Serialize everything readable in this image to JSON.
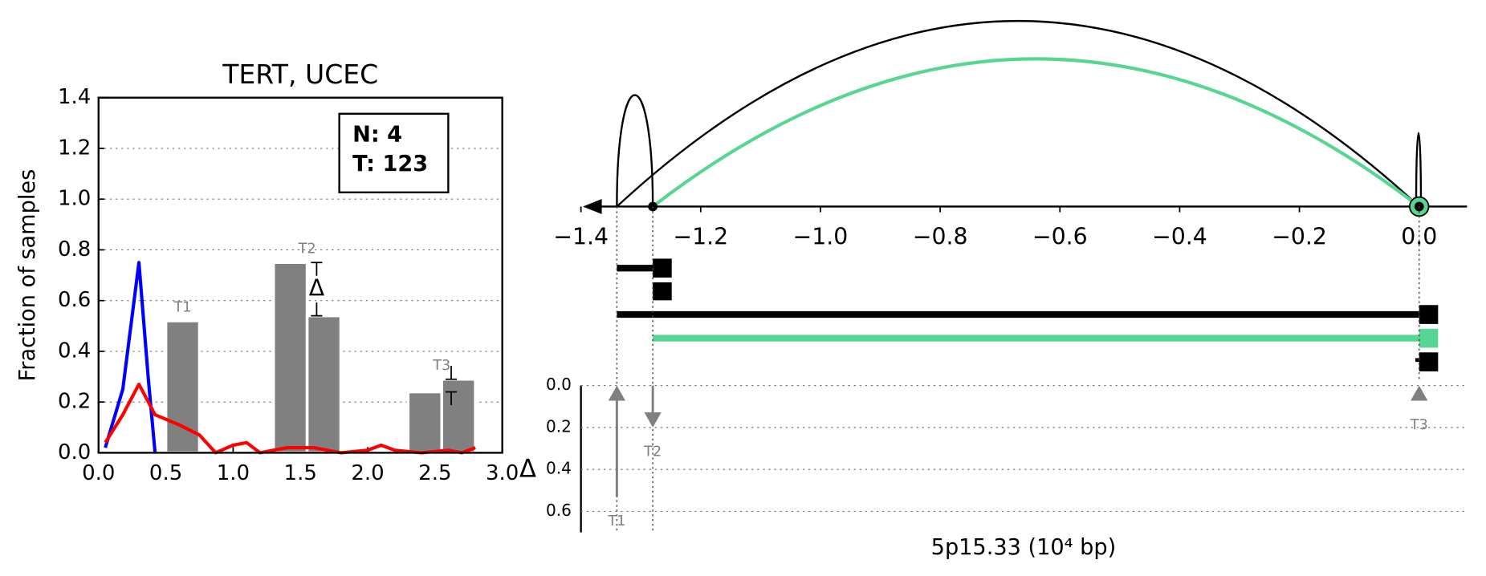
{
  "chart_data": [
    {
      "type": "bar",
      "title": "TERT, UCEC",
      "ylabel": "Fraction of samples",
      "xlim": [
        0,
        3
      ],
      "xticks": [
        {
          "value": 0,
          "label": "0.0"
        },
        {
          "value": 0.5,
          "label": "0.5"
        },
        {
          "value": 1,
          "label": "1.0"
        },
        {
          "value": 1.5,
          "label": "1.5"
        },
        {
          "value": 2,
          "label": "2.0"
        },
        {
          "value": 2.5,
          "label": "2.5"
        },
        {
          "value": 3,
          "label": "3.0"
        }
      ],
      "ylim": [
        0,
        1.4
      ],
      "yticks": [
        {
          "value": 0,
          "label": "0.0"
        },
        {
          "value": 0.2,
          "label": "0.2"
        },
        {
          "value": 0.4,
          "label": "0.4"
        },
        {
          "value": 0.6,
          "label": "0.6"
        },
        {
          "value": 0.8,
          "label": "0.8"
        },
        {
          "value": 1,
          "label": "1.0"
        },
        {
          "value": 1.2,
          "label": "1.2"
        },
        {
          "value": 1.4,
          "label": "1.4"
        }
      ],
      "grid": true,
      "annotation": [
        "N: 4",
        "T: 123"
      ],
      "bars": {
        "left": [
          0.5,
          1.3,
          1.55,
          2.3,
          2.55
        ],
        "right": [
          0.75,
          1.55,
          1.8,
          2.55,
          2.8
        ],
        "values": [
          0.52,
          0.75,
          0.54,
          0.24,
          0.29
        ],
        "color": "#808080"
      },
      "bar_groups": [
        {
          "label": "T1",
          "bars": [
            0
          ]
        },
        {
          "label": "T2",
          "bars": [
            1,
            2
          ]
        },
        {
          "label": "T3",
          "bars": [
            3,
            4
          ]
        }
      ],
      "delta_label": "Δ",
      "x": [
        0.05,
        0.18,
        0.3,
        0.37,
        0.42,
        0.6,
        0.75,
        0.87,
        1.0,
        1.1,
        1.2,
        1.4,
        1.6,
        1.8,
        2.0,
        2.1,
        2.2,
        2.4,
        2.6,
        2.7,
        2.8
      ],
      "series": [
        {
          "color": "#0000ff",
          "values": [
            0.02,
            0.25,
            0.75,
            0.29,
            0,
            null,
            null,
            null,
            null,
            null,
            null,
            null,
            null,
            null,
            null,
            null,
            null,
            null,
            null,
            null,
            null
          ]
        },
        {
          "color": "#ff0000",
          "values": [
            0.04,
            0.15,
            0.27,
            0.2,
            0.15,
            0.11,
            0.07,
            0,
            0.03,
            0.04,
            0,
            0.02,
            0.02,
            0,
            0.01,
            0.03,
            0.01,
            0,
            0.01,
            0,
            0.02
          ]
        }
      ]
    },
    {
      "type": "arc",
      "xlim": [
        -1.4,
        0.08
      ],
      "xticks": [
        {
          "value": -1.4,
          "label": "−1.4"
        },
        {
          "value": -1.2,
          "label": "−1.2"
        },
        {
          "value": -1,
          "label": "−1.0"
        },
        {
          "value": -0.8,
          "label": "−0.8"
        },
        {
          "value": -0.6,
          "label": "−0.6"
        },
        {
          "value": -0.4,
          "label": "−0.4"
        },
        {
          "value": -0.2,
          "label": "−0.2"
        },
        {
          "value": 0,
          "label": "0.0"
        }
      ],
      "arcs": [
        {
          "start": -1.34,
          "end": 0,
          "color": "#000000"
        },
        {
          "start": -1.28,
          "end": 0,
          "color": "#57d693"
        },
        {
          "start": -1.34,
          "end": -1.28,
          "color": "#000000"
        },
        {
          "start": -0.005,
          "end": 0.003,
          "color": "#000000"
        }
      ],
      "nodes": [
        -1.28,
        0
      ],
      "tracks": [
        {
          "start": -1.34,
          "end": -1.28,
          "color": "#000000"
        },
        {
          "start": -1.34,
          "end": 0,
          "color": "#000000"
        },
        {
          "start": -1.28,
          "end": 0,
          "color": "#57d693"
        }
      ]
    },
    {
      "type": "arrow",
      "xlabel": "5p15.33 (10⁴ bp)",
      "ylabel": "Δ",
      "xlim": [
        -1.4,
        0.08
      ],
      "ylim": [
        0,
        0.7
      ],
      "yticks": [
        {
          "value": 0,
          "label": "0.0"
        },
        {
          "value": 0.2,
          "label": "0.2"
        },
        {
          "value": 0.4,
          "label": "0.4"
        },
        {
          "value": 0.6,
          "label": "0.6"
        }
      ],
      "x": [
        -1.34,
        -1.28,
        0
      ],
      "labels": [
        "T1",
        "T2",
        "T3"
      ],
      "values": [
        0.53,
        0.2,
        0.04
      ],
      "direction": [
        "up",
        "down",
        "up"
      ],
      "color": "#808080"
    }
  ]
}
